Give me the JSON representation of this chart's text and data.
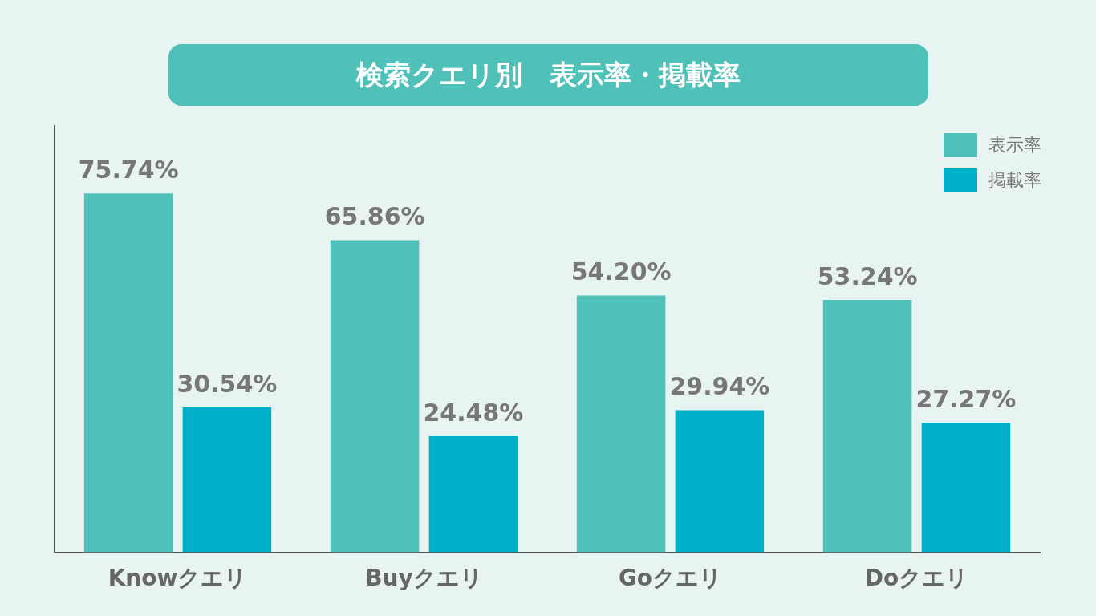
{
  "chart_data": {
    "type": "bar",
    "title": "検索クエリ別　表示率・掲載率",
    "categories": [
      "Knowクエリ",
      "Buyクエリ",
      "Goクエリ",
      "Doクエリ"
    ],
    "series": [
      {
        "name": "表示率",
        "color": "#4fc1b8",
        "values": [
          75.74,
          65.86,
          54.2,
          53.24
        ],
        "value_labels": [
          "75.74%",
          "65.86%",
          "54.20%",
          "53.24%"
        ]
      },
      {
        "name": "掲載率",
        "color": "#00b0c8",
        "values": [
          30.54,
          24.48,
          29.94,
          27.27
        ],
        "value_labels": [
          "30.54%",
          "24.48%",
          "29.94%",
          "27.27%"
        ]
      }
    ],
    "ylim": [
      0,
      90
    ],
    "tick_labels": "x",
    "grid": false,
    "legend": "top right"
  }
}
